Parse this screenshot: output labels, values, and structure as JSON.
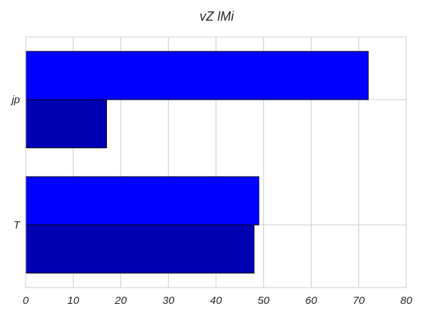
{
  "chart_data": {
    "type": "bar",
    "orientation": "horizontal",
    "title": "vZ lMi",
    "xlabel": "",
    "ylabel": "",
    "categories": [
      "jp",
      "T"
    ],
    "series": [
      {
        "values": [
          72,
          49
        ],
        "color": "#0000ff"
      },
      {
        "values": [
          17,
          48
        ],
        "color": "#0000b3"
      }
    ],
    "xlim": [
      0,
      80
    ],
    "xticks": [
      0,
      10,
      20,
      30,
      40,
      50,
      60,
      70,
      80
    ],
    "grid": true,
    "legend": "none"
  }
}
